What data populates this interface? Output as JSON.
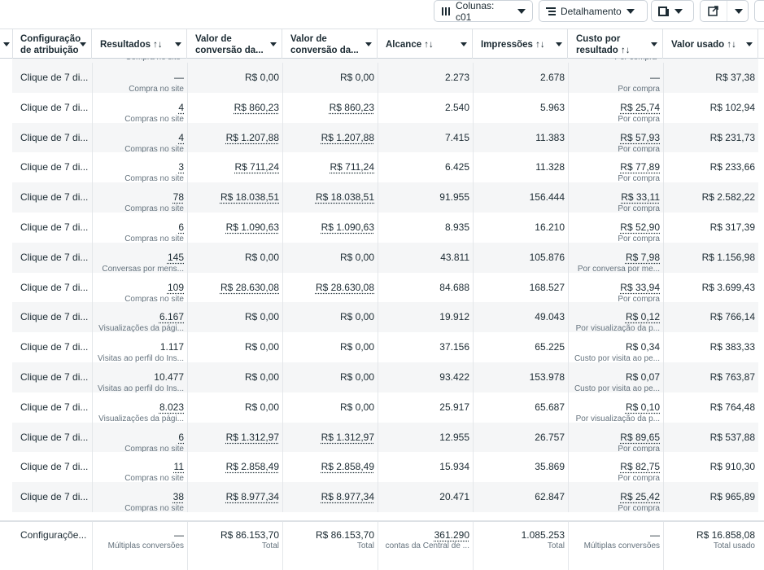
{
  "toolbar": {
    "columns_button": "Colunas: c01",
    "breakdown_button": "Detalhamento"
  },
  "headers": [
    "Configuração de atribuição",
    "Resultados ↑↓",
    "Valor de conversão da...",
    "Valor de conversão da...",
    "Alcance ↑↓",
    "Impressões ↑↓",
    "Custo por resultado ↑↓",
    "Valor usado ↑↓"
  ],
  "partial_row": {
    "results_label": "Compra no site",
    "cost_label": "Por compra"
  },
  "rows": [
    {
      "attribution": "Clique de 7 di...",
      "results": "—",
      "results_label": "Compra no site",
      "conv_value_1": "R$ 0,00",
      "conv_value_2": "R$ 0,00",
      "reach": "2.273",
      "impressions": "2.678",
      "cost": "—",
      "cost_label": "Por compra",
      "spent": "R$ 37,38",
      "link_results": false,
      "link_values": false
    },
    {
      "attribution": "Clique de 7 di...",
      "results": "4",
      "results_label": "Compras no site",
      "conv_value_1": "R$ 860,23",
      "conv_value_2": "R$ 860,23",
      "reach": "2.540",
      "impressions": "5.963",
      "cost": "R$ 25,74",
      "cost_label": "Por compra",
      "spent": "R$ 102,94",
      "link_results": true,
      "link_values": true
    },
    {
      "attribution": "Clique de 7 di...",
      "results": "4",
      "results_label": "Compras no site",
      "conv_value_1": "R$ 1.207,88",
      "conv_value_2": "R$ 1.207,88",
      "reach": "7.415",
      "impressions": "11.383",
      "cost": "R$ 57,93",
      "cost_label": "Por compra",
      "spent": "R$ 231,73",
      "link_results": true,
      "link_values": true
    },
    {
      "attribution": "Clique de 7 di...",
      "results": "3",
      "results_label": "Compras no site",
      "conv_value_1": "R$ 711,24",
      "conv_value_2": "R$ 711,24",
      "reach": "6.425",
      "impressions": "11.328",
      "cost": "R$ 77,89",
      "cost_label": "Por compra",
      "spent": "R$ 233,66",
      "link_results": true,
      "link_values": true
    },
    {
      "attribution": "Clique de 7 di...",
      "results": "78",
      "results_label": "Compras no site",
      "conv_value_1": "R$ 18.038,51",
      "conv_value_2": "R$ 18.038,51",
      "reach": "91.955",
      "impressions": "156.444",
      "cost": "R$ 33,11",
      "cost_label": "Por compra",
      "spent": "R$ 2.582,22",
      "link_results": true,
      "link_values": true
    },
    {
      "attribution": "Clique de 7 di...",
      "results": "6",
      "results_label": "Compras no site",
      "conv_value_1": "R$ 1.090,63",
      "conv_value_2": "R$ 1.090,63",
      "reach": "8.935",
      "impressions": "16.210",
      "cost": "R$ 52,90",
      "cost_label": "Por compra",
      "spent": "R$ 317,39",
      "link_results": true,
      "link_values": true
    },
    {
      "attribution": "Clique de 7 di...",
      "results": "145",
      "results_label": "Conversas por mens...",
      "conv_value_1": "R$ 0,00",
      "conv_value_2": "R$ 0,00",
      "reach": "43.811",
      "impressions": "105.876",
      "cost": "R$ 7,98",
      "cost_label": "Por conversa por me...",
      "spent": "R$ 1.156,98",
      "link_results": true,
      "link_values": false
    },
    {
      "attribution": "Clique de 7 di...",
      "results": "109",
      "results_label": "Compras no site",
      "conv_value_1": "R$ 28.630,08",
      "conv_value_2": "R$ 28.630,08",
      "reach": "84.688",
      "impressions": "168.527",
      "cost": "R$ 33,94",
      "cost_label": "Por compra",
      "spent": "R$ 3.699,43",
      "link_results": true,
      "link_values": true
    },
    {
      "attribution": "Clique de 7 di...",
      "results": "6.167",
      "results_label": "Visualizações da pági...",
      "conv_value_1": "R$ 0,00",
      "conv_value_2": "R$ 0,00",
      "reach": "19.912",
      "impressions": "49.043",
      "cost": "R$ 0,12",
      "cost_label": "Por visualização da p...",
      "spent": "R$ 766,14",
      "link_results": true,
      "link_values": false
    },
    {
      "attribution": "Clique de 7 di...",
      "results": "1.117",
      "results_label": "Visitas ao perfil do Ins...",
      "conv_value_1": "R$ 0,00",
      "conv_value_2": "R$ 0,00",
      "reach": "37.156",
      "impressions": "65.225",
      "cost": "R$ 0,34",
      "cost_label": "Custo por visita ao pe...",
      "spent": "R$ 383,33",
      "link_results": false,
      "link_values": false
    },
    {
      "attribution": "Clique de 7 di...",
      "results": "10.477",
      "results_label": "Visitas ao perfil do Ins...",
      "conv_value_1": "R$ 0,00",
      "conv_value_2": "R$ 0,00",
      "reach": "93.422",
      "impressions": "153.978",
      "cost": "R$ 0,07",
      "cost_label": "Custo por visita ao pe...",
      "spent": "R$ 763,87",
      "link_results": false,
      "link_values": false
    },
    {
      "attribution": "Clique de 7 di...",
      "results": "8.023",
      "results_label": "Visualizações da pági...",
      "conv_value_1": "R$ 0,00",
      "conv_value_2": "R$ 0,00",
      "reach": "25.917",
      "impressions": "65.687",
      "cost": "R$ 0,10",
      "cost_label": "Por visualização da p...",
      "spent": "R$ 764,48",
      "link_results": true,
      "link_values": false
    },
    {
      "attribution": "Clique de 7 di...",
      "results": "6",
      "results_label": "Compras no site",
      "conv_value_1": "R$ 1.312,97",
      "conv_value_2": "R$ 1.312,97",
      "reach": "12.955",
      "impressions": "26.757",
      "cost": "R$ 89,65",
      "cost_label": "Por compra",
      "spent": "R$ 537,88",
      "link_results": true,
      "link_values": true
    },
    {
      "attribution": "Clique de 7 di...",
      "results": "11",
      "results_label": "Compras no site",
      "conv_value_1": "R$ 2.858,49",
      "conv_value_2": "R$ 2.858,49",
      "reach": "15.934",
      "impressions": "35.869",
      "cost": "R$ 82,75",
      "cost_label": "Por compra",
      "spent": "R$ 910,30",
      "link_results": true,
      "link_values": true
    },
    {
      "attribution": "Clique de 7 di...",
      "results": "38",
      "results_label": "Compras no site",
      "conv_value_1": "R$ 8.977,34",
      "conv_value_2": "R$ 8.977,34",
      "reach": "20.471",
      "impressions": "62.847",
      "cost": "R$ 25,42",
      "cost_label": "Por compra",
      "spent": "R$ 965,89",
      "link_results": true,
      "link_values": true
    }
  ],
  "footer": {
    "attribution": "Configuraçõe...",
    "results": "—",
    "results_label": "Múltiplas conversões",
    "conv_value_1": "R$ 86.153,70",
    "conv_value_1_label": "Total",
    "conv_value_2": "R$ 86.153,70",
    "conv_value_2_label": "Total",
    "reach": "361.290",
    "reach_label": "contas da Central de ...",
    "impressions": "1.085.253",
    "impressions_label": "Total",
    "cost": "—",
    "cost_label": "Múltiplas conversões",
    "spent": "R$ 16.858,08",
    "spent_label": "Total usado"
  }
}
